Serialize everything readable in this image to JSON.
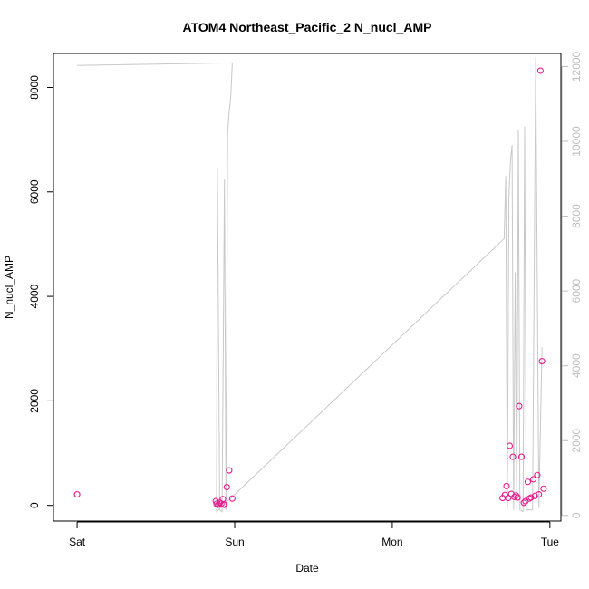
{
  "chart_data": {
    "type": "scatter",
    "title": "ATOM4 Northeast_Pacific_2 N_nucl_AMP",
    "xlabel": "Date",
    "ylabel": "N_nucl_AMP",
    "x_ticks": [
      {
        "label": "Sat",
        "day": 0
      },
      {
        "label": "Sun",
        "day": 1
      },
      {
        "label": "Mon",
        "day": 2
      },
      {
        "label": "Tue",
        "day": 3
      }
    ],
    "xlim_days": [
      -0.15,
      3.07
    ],
    "left_axis": {
      "ticks": [
        0,
        2000,
        4000,
        6000,
        8000
      ],
      "ylim": [
        -300,
        8650
      ]
    },
    "right_axis": {
      "ticks": [
        0,
        2000,
        4000,
        6000,
        8000,
        10000,
        12000
      ],
      "ylim": [
        -150,
        12350
      ],
      "color": "#bebebe"
    },
    "colors": {
      "points": "#e8198c",
      "line": "#c8c8c8"
    },
    "points": [
      {
        "day": 0.0,
        "y": 210
      },
      {
        "day": 0.88,
        "y": 80
      },
      {
        "day": 0.885,
        "y": 30
      },
      {
        "day": 0.895,
        "y": 10
      },
      {
        "day": 0.905,
        "y": 50
      },
      {
        "day": 0.915,
        "y": 30
      },
      {
        "day": 0.925,
        "y": 120
      },
      {
        "day": 0.93,
        "y": 20
      },
      {
        "day": 0.935,
        "y": 10
      },
      {
        "day": 0.95,
        "y": 350
      },
      {
        "day": 0.965,
        "y": 670
      },
      {
        "day": 0.985,
        "y": 130
      },
      {
        "day": 2.7,
        "y": 140
      },
      {
        "day": 2.715,
        "y": 200
      },
      {
        "day": 2.725,
        "y": 370
      },
      {
        "day": 2.735,
        "y": 140
      },
      {
        "day": 2.745,
        "y": 1140
      },
      {
        "day": 2.755,
        "y": 220
      },
      {
        "day": 2.765,
        "y": 930
      },
      {
        "day": 2.775,
        "y": 160
      },
      {
        "day": 2.785,
        "y": 190
      },
      {
        "day": 2.795,
        "y": 150
      },
      {
        "day": 2.805,
        "y": 1900
      },
      {
        "day": 2.82,
        "y": 930
      },
      {
        "day": 2.835,
        "y": 50
      },
      {
        "day": 2.845,
        "y": 80
      },
      {
        "day": 2.86,
        "y": 450
      },
      {
        "day": 2.87,
        "y": 130
      },
      {
        "day": 2.88,
        "y": 150
      },
      {
        "day": 2.895,
        "y": 500
      },
      {
        "day": 2.905,
        "y": 180
      },
      {
        "day": 2.92,
        "y": 580
      },
      {
        "day": 2.93,
        "y": 210
      },
      {
        "day": 2.94,
        "y": 8320
      },
      {
        "day": 2.95,
        "y": 2760
      },
      {
        "day": 2.96,
        "y": 320
      }
    ],
    "line_series": {
      "axis": "right",
      "points": [
        {
          "day": 0.0,
          "y": 12030
        },
        {
          "day": 0.985,
          "y": 12100
        },
        {
          "day": 0.975,
          "y": 11200
        },
        {
          "day": 0.965,
          "y": 10800
        },
        {
          "day": 0.955,
          "y": 10200
        },
        {
          "day": 0.945,
          "y": 150
        },
        {
          "day": 0.935,
          "y": 9000
        },
        {
          "day": 0.92,
          "y": 100
        },
        {
          "day": 0.905,
          "y": 150
        },
        {
          "day": 0.89,
          "y": 9300
        },
        {
          "day": 0.885,
          "y": 100
        },
        {
          "day": 2.71,
          "y": 7400
        },
        {
          "day": 2.72,
          "y": 9070
        },
        {
          "day": 2.73,
          "y": 150
        },
        {
          "day": 2.74,
          "y": 8500
        },
        {
          "day": 2.75,
          "y": 9500
        },
        {
          "day": 2.76,
          "y": 9900
        },
        {
          "day": 2.77,
          "y": 150
        },
        {
          "day": 2.78,
          "y": 6500
        },
        {
          "day": 2.79,
          "y": 150
        },
        {
          "day": 2.8,
          "y": 10300
        },
        {
          "day": 2.81,
          "y": 150
        },
        {
          "day": 2.83,
          "y": 100
        },
        {
          "day": 2.84,
          "y": 10400
        },
        {
          "day": 2.85,
          "y": 150
        },
        {
          "day": 2.87,
          "y": 150
        },
        {
          "day": 2.89,
          "y": 150
        },
        {
          "day": 2.91,
          "y": 12250
        },
        {
          "day": 2.93,
          "y": 200
        },
        {
          "day": 2.95,
          "y": 4500
        }
      ]
    }
  }
}
